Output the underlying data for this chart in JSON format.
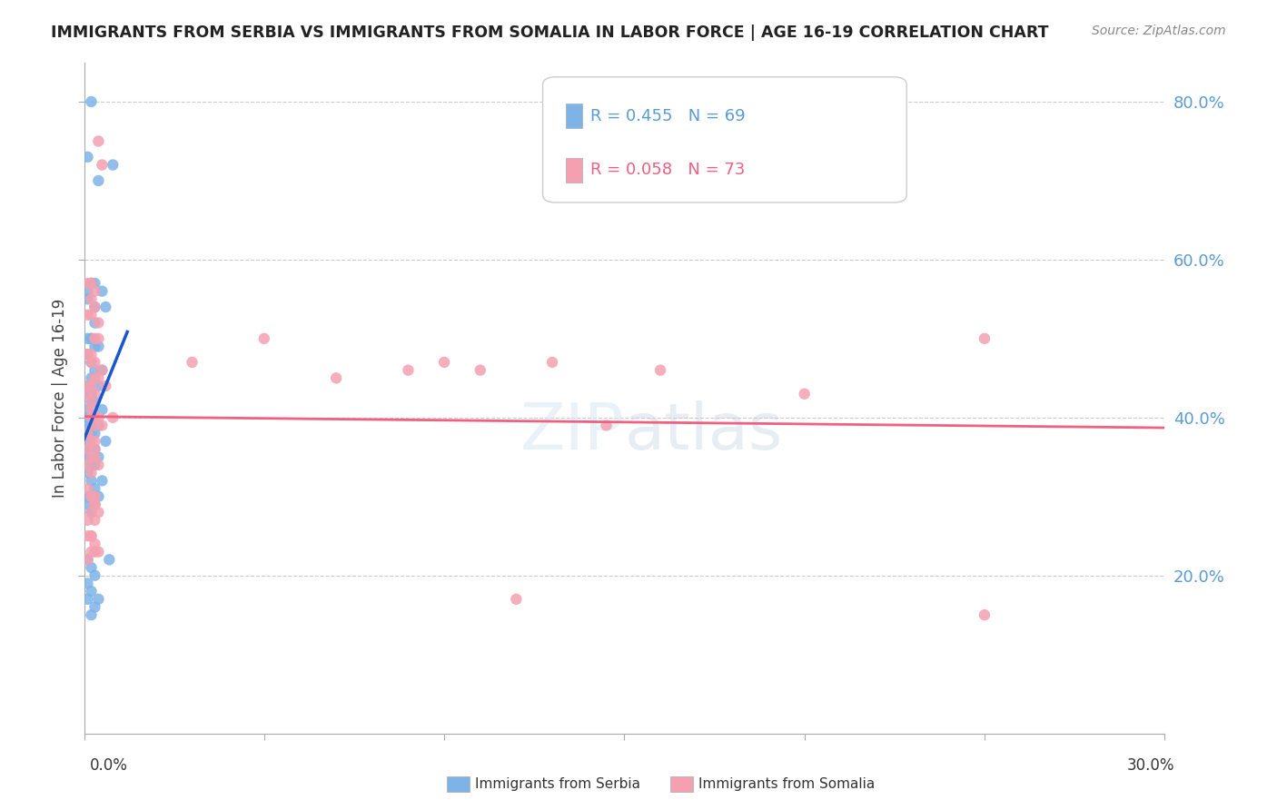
{
  "title": "IMMIGRANTS FROM SERBIA VS IMMIGRANTS FROM SOMALIA IN LABOR FORCE | AGE 16-19 CORRELATION CHART",
  "source": "Source: ZipAtlas.com",
  "ylabel_label": "In Labor Force | Age 16-19",
  "right_yticks": [
    0.2,
    0.4,
    0.6,
    0.8
  ],
  "right_yticklabels": [
    "20.0%",
    "40.0%",
    "60.0%",
    "80.0%"
  ],
  "xlim": [
    0.0,
    0.3
  ],
  "ylim": [
    0.0,
    0.85
  ],
  "serbia_color": "#7eb3e8",
  "somalia_color": "#f4a0b0",
  "serbia_R": 0.455,
  "serbia_N": 69,
  "somalia_R": 0.058,
  "somalia_N": 73,
  "serbia_line_color": "#1a56cc",
  "somalia_line_color": "#f06080",
  "serbia_dashed_color": "#aac8ee",
  "serbia_x": [
    0.002,
    0.001,
    0.004,
    0.008,
    0.002,
    0.003,
    0.001,
    0.002,
    0.001,
    0.003,
    0.006,
    0.005,
    0.003,
    0.002,
    0.001,
    0.004,
    0.002,
    0.003,
    0.001,
    0.002,
    0.005,
    0.003,
    0.002,
    0.001,
    0.004,
    0.002,
    0.001,
    0.003,
    0.002,
    0.005,
    0.001,
    0.002,
    0.003,
    0.001,
    0.002,
    0.004,
    0.001,
    0.003,
    0.002,
    0.001,
    0.006,
    0.002,
    0.001,
    0.003,
    0.002,
    0.004,
    0.001,
    0.002,
    0.003,
    0.001,
    0.002,
    0.005,
    0.003,
    0.001,
    0.002,
    0.004,
    0.001,
    0.003,
    0.002,
    0.007,
    0.001,
    0.002,
    0.003,
    0.001,
    0.002,
    0.004,
    0.001,
    0.003,
    0.002
  ],
  "serbia_y": [
    0.8,
    0.73,
    0.7,
    0.72,
    0.57,
    0.57,
    0.56,
    0.57,
    0.55,
    0.54,
    0.54,
    0.56,
    0.52,
    0.5,
    0.5,
    0.49,
    0.5,
    0.49,
    0.48,
    0.47,
    0.46,
    0.46,
    0.45,
    0.44,
    0.44,
    0.43,
    0.43,
    0.42,
    0.42,
    0.41,
    0.41,
    0.4,
    0.4,
    0.4,
    0.39,
    0.39,
    0.39,
    0.38,
    0.38,
    0.37,
    0.37,
    0.36,
    0.36,
    0.36,
    0.35,
    0.35,
    0.35,
    0.34,
    0.34,
    0.33,
    0.32,
    0.32,
    0.31,
    0.3,
    0.3,
    0.3,
    0.29,
    0.29,
    0.28,
    0.22,
    0.22,
    0.21,
    0.2,
    0.19,
    0.18,
    0.17,
    0.17,
    0.16,
    0.15
  ],
  "somalia_x": [
    0.001,
    0.002,
    0.003,
    0.004,
    0.005,
    0.002,
    0.003,
    0.001,
    0.004,
    0.002,
    0.003,
    0.001,
    0.002,
    0.004,
    0.003,
    0.002,
    0.005,
    0.003,
    0.001,
    0.002,
    0.004,
    0.003,
    0.002,
    0.001,
    0.003,
    0.002,
    0.004,
    0.003,
    0.001,
    0.002,
    0.005,
    0.003,
    0.002,
    0.001,
    0.003,
    0.002,
    0.004,
    0.003,
    0.001,
    0.002,
    0.006,
    0.003,
    0.002,
    0.001,
    0.003,
    0.002,
    0.004,
    0.003,
    0.001,
    0.002,
    0.008,
    0.003,
    0.002,
    0.001,
    0.003,
    0.002,
    0.004,
    0.003,
    0.001,
    0.002,
    0.03,
    0.05,
    0.07,
    0.09,
    0.1,
    0.11,
    0.13,
    0.16,
    0.2,
    0.25,
    0.145,
    0.12,
    0.25
  ],
  "somalia_y": [
    0.57,
    0.57,
    0.56,
    0.75,
    0.72,
    0.55,
    0.54,
    0.53,
    0.52,
    0.53,
    0.5,
    0.48,
    0.48,
    0.5,
    0.47,
    0.47,
    0.46,
    0.45,
    0.44,
    0.44,
    0.45,
    0.43,
    0.42,
    0.43,
    0.4,
    0.41,
    0.4,
    0.39,
    0.38,
    0.4,
    0.39,
    0.37,
    0.37,
    0.36,
    0.36,
    0.35,
    0.34,
    0.35,
    0.34,
    0.33,
    0.44,
    0.3,
    0.3,
    0.31,
    0.29,
    0.3,
    0.28,
    0.29,
    0.27,
    0.28,
    0.4,
    0.27,
    0.25,
    0.25,
    0.24,
    0.25,
    0.23,
    0.23,
    0.22,
    0.23,
    0.47,
    0.5,
    0.45,
    0.46,
    0.47,
    0.46,
    0.47,
    0.46,
    0.43,
    0.5,
    0.39,
    0.17,
    0.15
  ]
}
